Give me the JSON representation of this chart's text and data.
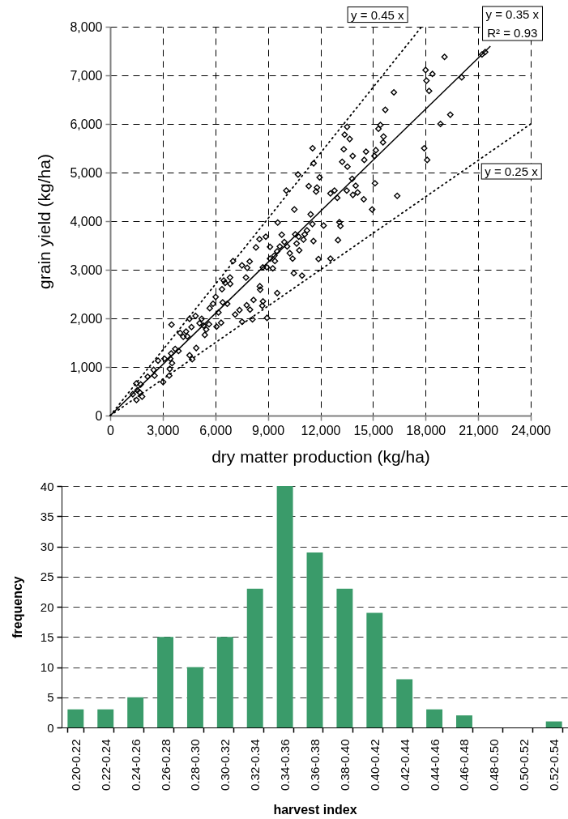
{
  "chart_data": [
    {
      "type": "scatter",
      "xlabel": "dry matter production (kg/ha)",
      "ylabel": "grain yield (kg/ha)",
      "xlim": [
        0,
        24000
      ],
      "ylim": [
        0,
        8000
      ],
      "xticks": [
        0,
        {
          "value": 3000,
          "label": "3,000"
        },
        {
          "value": 6000,
          "label": "6,000"
        },
        {
          "value": 9000,
          "label": "9,000"
        },
        {
          "value": 12000,
          "label": "12,000"
        },
        {
          "value": 15000,
          "label": "15,000"
        },
        {
          "value": 18000,
          "label": "18,000"
        },
        {
          "value": 21000,
          "label": "21,000"
        },
        {
          "value": 24000,
          "label": "24,000"
        }
      ],
      "yticks": [
        0,
        {
          "value": 1000,
          "label": "1,000"
        },
        {
          "value": 2000,
          "label": "2,000"
        },
        {
          "value": 3000,
          "label": "3,000"
        },
        {
          "value": 4000,
          "label": "4,000"
        },
        {
          "value": 5000,
          "label": "5,000"
        },
        {
          "value": 6000,
          "label": "6,000"
        },
        {
          "value": 7000,
          "label": "7,000"
        },
        {
          "value": 8000,
          "label": "8,000"
        }
      ],
      "grid": true,
      "marker": "diamond",
      "series": [
        {
          "type": "scatter",
          "color": "#000000",
          "x": [
            1500,
            1820,
            1680,
            1550,
            1290,
            1740,
            1490,
            2140,
            2530,
            2480,
            2730,
            3020,
            3370,
            3400,
            3530,
            3100,
            3430,
            3480,
            3710,
            3900,
            3500,
            3990,
            4170,
            4400,
            4330,
            4530,
            4640,
            4870,
            4530,
            4680,
            4910,
            5100,
            5220,
            5330,
            5480,
            5640,
            5400,
            5680,
            5870,
            6020,
            6070,
            6330,
            6180,
            6420,
            6680,
            6380,
            6560,
            6480,
            6840,
            7750,
            7130,
            7380,
            7530,
            7790,
            7980,
            8120,
            8180,
            8540,
            8560,
            8720,
            8950,
            11610,
            10720,
            11950,
            10050,
            11330,
            11800,
            11750,
            13240,
            13540,
            13840,
            14500,
            13810,
            12570,
            12800,
            12960,
            13500,
            13850,
            14010,
            14120,
            14470,
            14950,
            10510,
            11440,
            9560,
            11540,
            12180,
            13080,
            13140,
            13000,
            8880,
            8520,
            9790,
            8320,
            9120,
            10560,
            10760,
            11100,
            11230,
            11030,
            10640,
            10790,
            10410,
            10250,
            10100,
            9940,
            9680,
            9530,
            9370,
            9120,
            9400,
            9280,
            8940,
            8710,
            11600,
            11890,
            12570,
            10480,
            10950,
            7010,
            7520,
            7960,
            7820,
            6850,
            8680,
            9530,
            21220,
            21400,
            19080,
            18000,
            18390,
            18050,
            18200,
            20060,
            16190,
            15700,
            15420,
            15310,
            15600,
            15570,
            18850,
            19410,
            17920,
            18090,
            13520,
            13380,
            13670,
            13330,
            14600,
            15160,
            15080,
            15110,
            16380,
            11550
          ],
          "values": [
            320,
            390,
            480,
            520,
            440,
            640,
            660,
            800,
            820,
            940,
            1130,
            690,
            820,
            960,
            1080,
            1170,
            1170,
            1280,
            1370,
            1330,
            1870,
            1700,
            1620,
            1630,
            1730,
            1990,
            1820,
            2050,
            1240,
            1160,
            1390,
            1900,
            1990,
            1850,
            1770,
            1880,
            1660,
            2210,
            2300,
            2440,
            1830,
            1910,
            2120,
            2330,
            2300,
            2600,
            2730,
            2780,
            2840,
            2840,
            2080,
            2170,
            1930,
            2270,
            2180,
            1980,
            2380,
            2660,
            2590,
            2350,
            2010,
            5190,
            4960,
            4900,
            4630,
            4720,
            4690,
            4610,
            5220,
            5120,
            5340,
            5260,
            4870,
            4570,
            4630,
            4480,
            4630,
            4540,
            4730,
            4590,
            4450,
            4240,
            4240,
            4140,
            3970,
            3940,
            3910,
            3980,
            3900,
            3610,
            3680,
            3630,
            3720,
            3460,
            3470,
            3730,
            3680,
            3730,
            3810,
            3620,
            3540,
            3400,
            3230,
            3340,
            3480,
            3570,
            3480,
            3380,
            3290,
            3230,
            3180,
            3030,
            3050,
            3050,
            3590,
            3220,
            3230,
            2930,
            2880,
            3180,
            3090,
            3170,
            3040,
            2710,
            2260,
            2520,
            7430,
            7480,
            7380,
            7110,
            7030,
            6890,
            6680,
            6960,
            6650,
            6290,
            5980,
            5900,
            5740,
            5620,
            6000,
            6190,
            5500,
            5260,
            5940,
            5780,
            5690,
            5480,
            5430,
            5460,
            5340,
            4780,
            4520,
            5500
          ]
        },
        {
          "type": "line",
          "name": "y = 0.45 x",
          "color": "#000000",
          "line_style": "dotted",
          "marker": "none",
          "x": [
            0,
            17750
          ],
          "values": [
            0,
            7990
          ]
        },
        {
          "type": "line",
          "name": "y = 0.35 x",
          "color": "#000000",
          "line_style": "solid",
          "marker": "none",
          "x": [
            0,
            21700
          ],
          "values": [
            0,
            7600
          ]
        },
        {
          "type": "line",
          "name": "y = 0.25 x",
          "color": "#000000",
          "line_style": "dotted",
          "marker": "none",
          "x": [
            0,
            24000
          ],
          "values": [
            0,
            6000
          ]
        }
      ],
      "annotations": [
        {
          "text": "R² = 0.93",
          "x": 21700,
          "y": 7600
        }
      ]
    },
    {
      "type": "bar",
      "xlabel": "harvest index",
      "ylabel": "frequency",
      "categories": [
        "0.20-0.22",
        "0.22-0.24",
        "0.24-0.26",
        "0.26-0.28",
        "0.28-0.30",
        "0.30-0.32",
        "0.32-0.34",
        "0.34-0.36",
        "0.36-0.38",
        "0.38-0.40",
        "0.40-0.42",
        "0.42-0.44",
        "0.44-0.46",
        "0.46-0.48",
        "0.48-0.50",
        "0.50-0.52",
        "0.52-0.54"
      ],
      "values": [
        3,
        3,
        5,
        15,
        10,
        15,
        23,
        40,
        29,
        23,
        19,
        8,
        3,
        2,
        0,
        0,
        1
      ],
      "color": "#3a9b6a",
      "ylim": [
        0,
        40
      ],
      "yticks": [
        0,
        5,
        10,
        15,
        20,
        25,
        30,
        35,
        40
      ],
      "grid": "y"
    }
  ]
}
